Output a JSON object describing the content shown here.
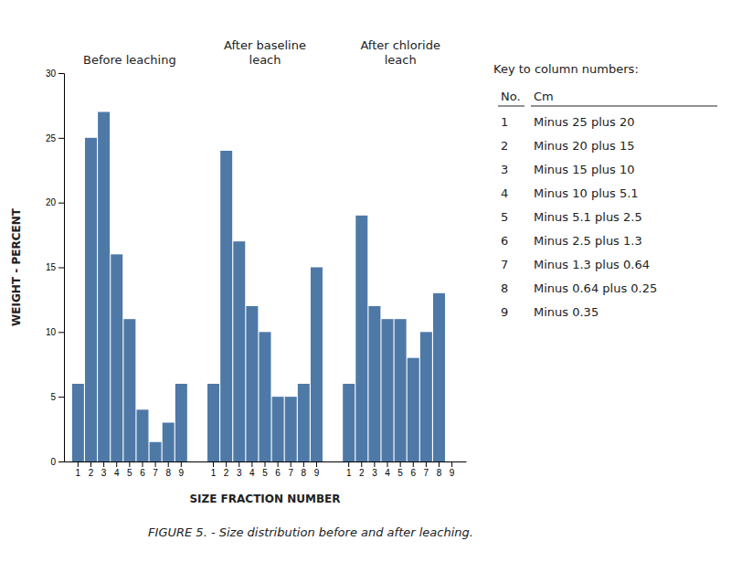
{
  "chart_data": {
    "type": "bar",
    "title": "FIGURE 5. - Size distribution before and after leaching.",
    "xlabel": "SIZE FRACTION NUMBER",
    "ylabel": "WEIGHT - PERCENT",
    "categories": [
      "1",
      "2",
      "3",
      "4",
      "5",
      "6",
      "7",
      "8",
      "9"
    ],
    "series": [
      {
        "name": "Before leaching",
        "values": [
          6,
          25,
          27,
          16,
          11,
          4,
          1.5,
          3,
          6
        ]
      },
      {
        "name": "After baseline\nleach",
        "values": [
          6,
          24,
          17,
          12,
          10,
          5,
          5,
          6,
          15
        ]
      },
      {
        "name": "After chloride\nleach",
        "values": [
          6,
          19,
          12,
          11,
          11,
          8,
          10,
          13,
          0
        ]
      }
    ],
    "ylim": [
      0,
      30
    ],
    "yticks": [
      0,
      5,
      10,
      15,
      20,
      25,
      30
    ],
    "annotations": [
      "Key to column numbers:",
      "No.",
      "Cm",
      "Minus 25 plus 20",
      "Minus 20 plus 15",
      "Minus 15 plus 10",
      "Minus 10 plus 5.1",
      "Minus 5.1 plus 2.5",
      "Minus 2.5 plus 1.3",
      "Minus 1.3 plus 0.64",
      "Minus 0.64 plus 0.25",
      "Minus 0.35"
    ]
  }
}
